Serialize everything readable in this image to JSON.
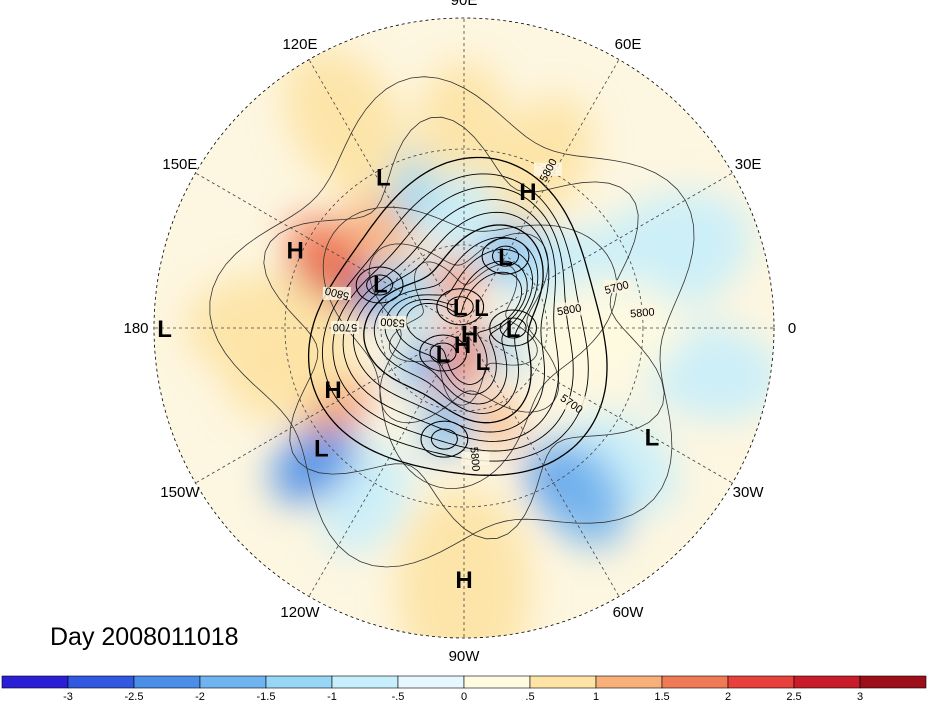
{
  "title": "Day 2008011018",
  "longitude_labels": [
    "90E",
    "60E",
    "30E",
    "0",
    "30W",
    "60W",
    "90W",
    "120W",
    "150W",
    "180",
    "150E",
    "120E"
  ],
  "pressure_centers": [
    {
      "type": "H",
      "lon": 65,
      "lat": 38
    },
    {
      "type": "L",
      "lon": 118,
      "lat": 32
    },
    {
      "type": "H",
      "lon": 155,
      "lat": 28
    },
    {
      "type": "L",
      "lon": 180,
      "lat": 2
    },
    {
      "type": "L",
      "lon": 152,
      "lat": 56
    },
    {
      "type": "L",
      "lon": 60,
      "lat": 60
    },
    {
      "type": "L",
      "lon": 50,
      "lat": 80
    },
    {
      "type": "L",
      "lon": 100,
      "lat": 82
    },
    {
      "type": "H",
      "lon": -45,
      "lat": 87
    },
    {
      "type": "L",
      "lon": 0,
      "lat": 72
    },
    {
      "type": "L",
      "lon": -130,
      "lat": 78
    },
    {
      "type": "H",
      "lon": -95,
      "lat": 84
    },
    {
      "type": "L",
      "lon": -60,
      "lat": 76
    },
    {
      "type": "H",
      "lon": -155,
      "lat": 40
    },
    {
      "type": "L",
      "lon": -140,
      "lat": 28
    },
    {
      "type": "H",
      "lon": -90,
      "lat": 12
    },
    {
      "type": "L",
      "lon": -30,
      "lat": 20
    }
  ],
  "contour_labels": [
    "5800",
    "5700",
    "5800",
    "5800",
    "5300",
    "5700",
    "5800",
    "5700",
    "5800"
  ],
  "colorbar": {
    "labels": [
      "-3",
      "-2.5",
      "-2",
      "-1.5",
      "-1",
      "-.5",
      "0",
      ".5",
      "1",
      "1.5",
      "2",
      "2.5",
      "3"
    ],
    "colors": [
      "#2b1fd6",
      "#3058e0",
      "#4b8ee8",
      "#6fb3f0",
      "#98d6f6",
      "#c6eefb",
      "#e6f7fe",
      "#fffbe0",
      "#fde3a4",
      "#f7b07a",
      "#f07a55",
      "#e8403a",
      "#c91c2a",
      "#9c0f1a"
    ]
  },
  "anomalies": [
    {
      "lon": 160,
      "lat": 42,
      "v": 2.6,
      "s": 11
    },
    {
      "lon": 150,
      "lat": 36,
      "v": 1.8,
      "s": 10
    },
    {
      "lon": 130,
      "lat": 45,
      "v": 1.0,
      "s": 10
    },
    {
      "lon": 110,
      "lat": 38,
      "v": -1.2,
      "s": 10
    },
    {
      "lon": 90,
      "lat": 25,
      "v": 0.6,
      "s": 14
    },
    {
      "lon": 65,
      "lat": 28,
      "v": 0.7,
      "s": 14
    },
    {
      "lon": 40,
      "lat": 55,
      "v": -2.0,
      "s": 10
    },
    {
      "lon": 60,
      "lat": 58,
      "v": -1.8,
      "s": 9
    },
    {
      "lon": 30,
      "lat": 50,
      "v": -0.8,
      "s": 14
    },
    {
      "lon": 20,
      "lat": 20,
      "v": -0.6,
      "s": 16
    },
    {
      "lon": -10,
      "lat": 12,
      "v": -1.0,
      "s": 12
    },
    {
      "lon": -40,
      "lat": 22,
      "v": -0.8,
      "s": 12
    },
    {
      "lon": -60,
      "lat": 30,
      "v": -2.8,
      "s": 8
    },
    {
      "lon": -55,
      "lat": 24,
      "v": -2.0,
      "s": 12
    },
    {
      "lon": -90,
      "lat": 10,
      "v": 0.7,
      "s": 16
    },
    {
      "lon": -120,
      "lat": 25,
      "v": -1.0,
      "s": 12
    },
    {
      "lon": -138,
      "lat": 24,
      "v": -2.2,
      "s": 10
    },
    {
      "lon": -150,
      "lat": 38,
      "v": 1.9,
      "s": 9
    },
    {
      "lon": -165,
      "lat": 30,
      "v": 0.8,
      "s": 14
    },
    {
      "lon": 180,
      "lat": 25,
      "v": 0.7,
      "s": 16
    },
    {
      "lon": 160,
      "lat": 58,
      "v": -2.4,
      "s": 8
    },
    {
      "lon": 145,
      "lat": 65,
      "v": -1.5,
      "s": 10
    },
    {
      "lon": 100,
      "lat": 72,
      "v": 1.8,
      "s": 8
    },
    {
      "lon": -30,
      "lat": 75,
      "v": -1.5,
      "s": 9
    },
    {
      "lon": -80,
      "lat": 82,
      "v": 1.8,
      "s": 6
    },
    {
      "lon": -110,
      "lat": 75,
      "v": 1.5,
      "s": 8
    },
    {
      "lon": -100,
      "lat": 55,
      "v": -2.0,
      "s": 9
    },
    {
      "lon": -140,
      "lat": 70,
      "v": -1.6,
      "s": 9
    },
    {
      "lon": -70,
      "lat": 55,
      "v": 1.4,
      "s": 8
    },
    {
      "lon": 0,
      "lat": 40,
      "v": 0.4,
      "s": 18
    },
    {
      "lon": 120,
      "lat": 15,
      "v": 0.5,
      "s": 14
    },
    {
      "lon": 90,
      "lat": 50,
      "v": -0.6,
      "s": 12
    }
  ]
}
